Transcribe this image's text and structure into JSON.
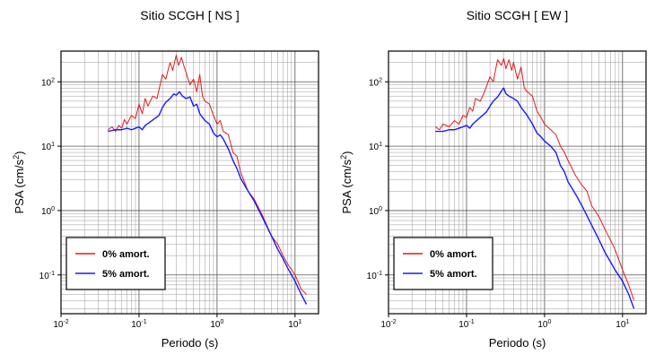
{
  "chart_data": [
    {
      "type": "line",
      "title": "Sitio SCGH [ NS ]",
      "xlabel": "Periodo (s)",
      "ylabel": "PSA (cm/s",
      "ylabel_sup": "2",
      "ylabel_close": ")",
      "x_scale": "log",
      "y_scale": "log",
      "xlim": [
        0.01,
        20
      ],
      "ylim": [
        0.025,
        300
      ],
      "grid": true,
      "legend_position": "bottom-left",
      "x_ticks": [
        {
          "base": "10",
          "exp": "-2",
          "value": 0.01
        },
        {
          "base": "10",
          "exp": "-1",
          "value": 0.1
        },
        {
          "base": "10",
          "exp": "0",
          "value": 1
        },
        {
          "base": "10",
          "exp": "1",
          "value": 10
        }
      ],
      "y_ticks": [
        {
          "base": "10",
          "exp": "-1",
          "value": 0.1
        },
        {
          "base": "10",
          "exp": "0",
          "value": 1
        },
        {
          "base": "10",
          "exp": "1",
          "value": 10
        },
        {
          "base": "10",
          "exp": "2",
          "value": 100
        }
      ],
      "series": [
        {
          "name": "0% amort.",
          "color": "#e41a1c",
          "points": [
            [
              0.04,
              18
            ],
            [
              0.045,
              20
            ],
            [
              0.05,
              17
            ],
            [
              0.055,
              21
            ],
            [
              0.06,
              19
            ],
            [
              0.065,
              26
            ],
            [
              0.07,
              22
            ],
            [
              0.08,
              30
            ],
            [
              0.09,
              27
            ],
            [
              0.1,
              45
            ],
            [
              0.11,
              32
            ],
            [
              0.12,
              55
            ],
            [
              0.13,
              42
            ],
            [
              0.15,
              60
            ],
            [
              0.17,
              55
            ],
            [
              0.2,
              130
            ],
            [
              0.22,
              110
            ],
            [
              0.25,
              200
            ],
            [
              0.27,
              150
            ],
            [
              0.3,
              260
            ],
            [
              0.32,
              180
            ],
            [
              0.35,
              240
            ],
            [
              0.38,
              170
            ],
            [
              0.4,
              140
            ],
            [
              0.45,
              90
            ],
            [
              0.5,
              110
            ],
            [
              0.55,
              70
            ],
            [
              0.6,
              130
            ],
            [
              0.65,
              60
            ],
            [
              0.7,
              50
            ],
            [
              0.8,
              45
            ],
            [
              0.9,
              30
            ],
            [
              1.0,
              22
            ],
            [
              1.1,
              25
            ],
            [
              1.2,
              17
            ],
            [
              1.4,
              15
            ],
            [
              1.6,
              8
            ],
            [
              1.8,
              7
            ],
            [
              2.0,
              4
            ],
            [
              2.5,
              2
            ],
            [
              3.0,
              1.5
            ],
            [
              4.0,
              0.75
            ],
            [
              5.0,
              0.4
            ],
            [
              6.0,
              0.3
            ],
            [
              7.0,
              0.2
            ],
            [
              8.0,
              0.15
            ],
            [
              10.0,
              0.1
            ],
            [
              12.0,
              0.06
            ],
            [
              14.0,
              0.05
            ]
          ]
        },
        {
          "name": "5% amort.",
          "color": "#1a1aff",
          "points": [
            [
              0.04,
              17
            ],
            [
              0.05,
              18
            ],
            [
              0.06,
              18
            ],
            [
              0.07,
              19
            ],
            [
              0.08,
              18
            ],
            [
              0.09,
              19
            ],
            [
              0.1,
              20
            ],
            [
              0.11,
              18
            ],
            [
              0.12,
              21
            ],
            [
              0.14,
              24
            ],
            [
              0.16,
              27
            ],
            [
              0.18,
              30
            ],
            [
              0.2,
              40
            ],
            [
              0.22,
              48
            ],
            [
              0.25,
              55
            ],
            [
              0.28,
              65
            ],
            [
              0.3,
              62
            ],
            [
              0.33,
              70
            ],
            [
              0.36,
              60
            ],
            [
              0.4,
              55
            ],
            [
              0.45,
              58
            ],
            [
              0.5,
              42
            ],
            [
              0.55,
              45
            ],
            [
              0.6,
              32
            ],
            [
              0.7,
              25
            ],
            [
              0.8,
              22
            ],
            [
              0.9,
              16
            ],
            [
              1.0,
              14
            ],
            [
              1.1,
              15
            ],
            [
              1.2,
              13
            ],
            [
              1.4,
              9
            ],
            [
              1.6,
              6
            ],
            [
              1.8,
              4.5
            ],
            [
              2.0,
              3.2
            ],
            [
              2.5,
              2
            ],
            [
              3.0,
              1.4
            ],
            [
              4.0,
              0.7
            ],
            [
              5.0,
              0.4
            ],
            [
              6.0,
              0.25
            ],
            [
              7.0,
              0.18
            ],
            [
              8.0,
              0.13
            ],
            [
              10.0,
              0.08
            ],
            [
              12.0,
              0.05
            ],
            [
              14.0,
              0.035
            ]
          ]
        }
      ]
    },
    {
      "type": "line",
      "title": "Sitio SCGH [ EW ]",
      "xlabel": "Periodo (s)",
      "ylabel": "PSA (cm/s",
      "ylabel_sup": "2",
      "ylabel_close": ")",
      "x_scale": "log",
      "y_scale": "log",
      "xlim": [
        0.01,
        20
      ],
      "ylim": [
        0.025,
        300
      ],
      "grid": true,
      "legend_position": "bottom-left",
      "x_ticks": [
        {
          "base": "10",
          "exp": "-2",
          "value": 0.01
        },
        {
          "base": "10",
          "exp": "-1",
          "value": 0.1
        },
        {
          "base": "10",
          "exp": "0",
          "value": 1
        },
        {
          "base": "10",
          "exp": "1",
          "value": 10
        }
      ],
      "y_ticks": [
        {
          "base": "10",
          "exp": "-1",
          "value": 0.1
        },
        {
          "base": "10",
          "exp": "0",
          "value": 1
        },
        {
          "base": "10",
          "exp": "1",
          "value": 10
        },
        {
          "base": "10",
          "exp": "2",
          "value": 100
        }
      ],
      "series": [
        {
          "name": "0% amort.",
          "color": "#e41a1c",
          "points": [
            [
              0.04,
              20
            ],
            [
              0.045,
              18
            ],
            [
              0.05,
              22
            ],
            [
              0.06,
              20
            ],
            [
              0.07,
              25
            ],
            [
              0.08,
              22
            ],
            [
              0.09,
              30
            ],
            [
              0.1,
              28
            ],
            [
              0.11,
              40
            ],
            [
              0.12,
              35
            ],
            [
              0.13,
              55
            ],
            [
              0.15,
              50
            ],
            [
              0.17,
              70
            ],
            [
              0.2,
              120
            ],
            [
              0.22,
              100
            ],
            [
              0.25,
              220
            ],
            [
              0.28,
              180
            ],
            [
              0.3,
              230
            ],
            [
              0.32,
              160
            ],
            [
              0.35,
              220
            ],
            [
              0.38,
              150
            ],
            [
              0.4,
              200
            ],
            [
              0.45,
              110
            ],
            [
              0.5,
              170
            ],
            [
              0.55,
              80
            ],
            [
              0.6,
              70
            ],
            [
              0.7,
              60
            ],
            [
              0.8,
              35
            ],
            [
              0.9,
              28
            ],
            [
              1.0,
              22
            ],
            [
              1.2,
              18
            ],
            [
              1.4,
              15
            ],
            [
              1.6,
              10
            ],
            [
              1.8,
              8
            ],
            [
              2.0,
              6
            ],
            [
              2.5,
              3.5
            ],
            [
              3.0,
              2.5
            ],
            [
              3.5,
              2
            ],
            [
              4.0,
              1.2
            ],
            [
              5.0,
              0.8
            ],
            [
              6.0,
              0.5
            ],
            [
              7.0,
              0.35
            ],
            [
              8.0,
              0.25
            ],
            [
              10.0,
              0.12
            ],
            [
              12.0,
              0.07
            ],
            [
              14.0,
              0.04
            ]
          ]
        },
        {
          "name": "5% amort.",
          "color": "#1a1aff",
          "points": [
            [
              0.04,
              17
            ],
            [
              0.05,
              17
            ],
            [
              0.06,
              18
            ],
            [
              0.07,
              18
            ],
            [
              0.08,
              19
            ],
            [
              0.09,
              20
            ],
            [
              0.1,
              21
            ],
            [
              0.11,
              19
            ],
            [
              0.12,
              22
            ],
            [
              0.14,
              26
            ],
            [
              0.16,
              30
            ],
            [
              0.18,
              34
            ],
            [
              0.2,
              42
            ],
            [
              0.22,
              50
            ],
            [
              0.25,
              58
            ],
            [
              0.28,
              72
            ],
            [
              0.3,
              80
            ],
            [
              0.32,
              65
            ],
            [
              0.35,
              60
            ],
            [
              0.4,
              55
            ],
            [
              0.45,
              50
            ],
            [
              0.5,
              40
            ],
            [
              0.6,
              30
            ],
            [
              0.7,
              22
            ],
            [
              0.8,
              16
            ],
            [
              0.9,
              14
            ],
            [
              1.0,
              12
            ],
            [
              1.2,
              10
            ],
            [
              1.4,
              8
            ],
            [
              1.6,
              5
            ],
            [
              1.8,
              4
            ],
            [
              2.0,
              2.8
            ],
            [
              2.5,
              1.8
            ],
            [
              3.0,
              1.2
            ],
            [
              4.0,
              0.6
            ],
            [
              5.0,
              0.35
            ],
            [
              6.0,
              0.22
            ],
            [
              7.0,
              0.16
            ],
            [
              8.0,
              0.12
            ],
            [
              10.0,
              0.08
            ],
            [
              12.0,
              0.05
            ],
            [
              14.0,
              0.03
            ]
          ]
        }
      ]
    }
  ]
}
